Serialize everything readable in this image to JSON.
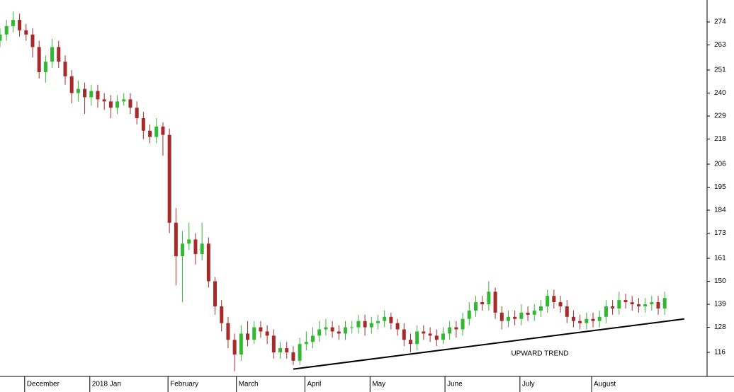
{
  "chart_data": {
    "type": "candlestick",
    "x": [
      0,
      2,
      4,
      6,
      8,
      10,
      12,
      14,
      16,
      18,
      20,
      22,
      24,
      26,
      28,
      30,
      32,
      34,
      36,
      38,
      40,
      42,
      44,
      46,
      48,
      50,
      52,
      54,
      56,
      58,
      60,
      62,
      64,
      66,
      68,
      70,
      72,
      74,
      76,
      78,
      80,
      82,
      84,
      86,
      88,
      90,
      92,
      94,
      96,
      98,
      100,
      102,
      104,
      106,
      108,
      110,
      112,
      114,
      116,
      118,
      120,
      122,
      124,
      126,
      128,
      130,
      132,
      134,
      136,
      138,
      140,
      142,
      144,
      146,
      148,
      150,
      152,
      154,
      156,
      158,
      160,
      162,
      164,
      166,
      168,
      170,
      172,
      174,
      176,
      178,
      180,
      182,
      184,
      186,
      188,
      190,
      192,
      194,
      196,
      198,
      200,
      202,
      204
    ],
    "open": [
      265,
      268,
      272,
      275,
      270,
      268,
      262,
      250,
      255,
      262,
      255,
      248,
      240,
      242,
      238,
      241,
      237,
      236,
      233,
      236,
      237,
      233,
      228,
      222,
      219,
      224,
      220,
      178,
      162,
      168,
      170,
      163,
      168,
      150,
      138,
      130,
      122,
      115,
      125,
      122,
      128,
      126,
      124,
      116,
      118,
      116,
      112,
      120,
      121,
      124,
      127,
      128,
      126,
      125,
      128,
      128,
      131,
      128,
      130,
      131,
      133,
      130,
      127,
      122,
      120,
      126,
      125,
      124,
      122,
      125,
      128,
      127,
      132,
      136,
      140,
      139,
      145,
      135,
      131,
      133,
      132,
      135,
      134,
      136,
      138,
      143,
      140,
      138,
      133,
      131,
      130,
      132,
      131,
      133,
      138,
      137,
      141,
      140,
      139,
      138,
      139,
      140,
      137
    ],
    "high": [
      271,
      275,
      279,
      278,
      273,
      271,
      265,
      258,
      266,
      265,
      258,
      251,
      246,
      245,
      244,
      244,
      240,
      239,
      239,
      240,
      240,
      236,
      231,
      225,
      228,
      226,
      223,
      185,
      174,
      178,
      173,
      178,
      171,
      152,
      141,
      133,
      125,
      129,
      131,
      131,
      131,
      129,
      127,
      121,
      121,
      119,
      123,
      126,
      128,
      131,
      132,
      131,
      129,
      131,
      131,
      134,
      134,
      133,
      134,
      136,
      135,
      132,
      130,
      125,
      129,
      129,
      128,
      127,
      128,
      131,
      131,
      135,
      140,
      143,
      143,
      150,
      147,
      138,
      136,
      136,
      139,
      138,
      139,
      141,
      146,
      146,
      143,
      141,
      136,
      134,
      135,
      135,
      136,
      141,
      141,
      145,
      144,
      143,
      142,
      142,
      143,
      143,
      145
    ],
    "low": [
      262,
      265,
      269,
      267,
      265,
      257,
      247,
      245,
      252,
      252,
      244,
      235,
      236,
      230,
      234,
      233,
      232,
      228,
      230,
      234,
      230,
      225,
      218,
      216,
      216,
      210,
      173,
      148,
      140,
      165,
      158,
      160,
      147,
      134,
      126,
      118,
      107,
      112,
      119,
      120,
      123,
      120,
      113,
      113,
      113,
      110,
      110,
      117,
      118,
      121,
      124,
      123,
      122,
      122,
      125,
      125,
      124,
      125,
      127,
      128,
      127,
      124,
      119,
      116,
      117,
      122,
      121,
      119,
      120,
      122,
      123,
      124,
      129,
      133,
      136,
      136,
      132,
      127,
      128,
      129,
      129,
      131,
      131,
      133,
      135,
      137,
      135,
      130,
      128,
      127,
      127,
      128,
      128,
      130,
      134,
      134,
      137,
      136,
      135,
      135,
      136,
      134,
      134
    ],
    "close": [
      268,
      272,
      275,
      270,
      268,
      262,
      250,
      255,
      262,
      255,
      248,
      240,
      242,
      238,
      241,
      237,
      236,
      233,
      236,
      237,
      233,
      228,
      222,
      219,
      224,
      220,
      178,
      162,
      168,
      170,
      163,
      168,
      150,
      138,
      130,
      122,
      115,
      125,
      122,
      128,
      126,
      124,
      116,
      118,
      116,
      112,
      120,
      121,
      124,
      127,
      128,
      126,
      125,
      128,
      128,
      131,
      128,
      130,
      131,
      133,
      130,
      127,
      122,
      120,
      126,
      125,
      124,
      122,
      125,
      128,
      127,
      132,
      136,
      140,
      139,
      145,
      135,
      131,
      133,
      132,
      135,
      134,
      136,
      138,
      143,
      140,
      138,
      133,
      131,
      130,
      132,
      131,
      133,
      138,
      137,
      141,
      140,
      139,
      138,
      139,
      140,
      137,
      142
    ],
    "up_color": "#33b833",
    "down_color": "#a52a2a",
    "xlim": [
      0,
      217
    ],
    "xticks": [
      {
        "value": 8,
        "label": "December"
      },
      {
        "value": 28,
        "label": "2018 Jan"
      },
      {
        "value": 52,
        "label": "February"
      },
      {
        "value": 73,
        "label": "March"
      },
      {
        "value": 94,
        "label": "April"
      },
      {
        "value": 114,
        "label": "May"
      },
      {
        "value": 137,
        "label": "June"
      },
      {
        "value": 160,
        "label": "July"
      },
      {
        "value": 182,
        "label": "August"
      }
    ],
    "ylim": [
      104.5,
      284.5
    ],
    "yticks": [
      116,
      128,
      139,
      150,
      161,
      173,
      184,
      195,
      206,
      218,
      229,
      240,
      251,
      263,
      274
    ],
    "trendline": {
      "x": [
        90,
        210
      ],
      "y": [
        108,
        132
      ],
      "color": "#000000",
      "label": "UPWARD TREND",
      "label_color": "#2222bb"
    }
  }
}
